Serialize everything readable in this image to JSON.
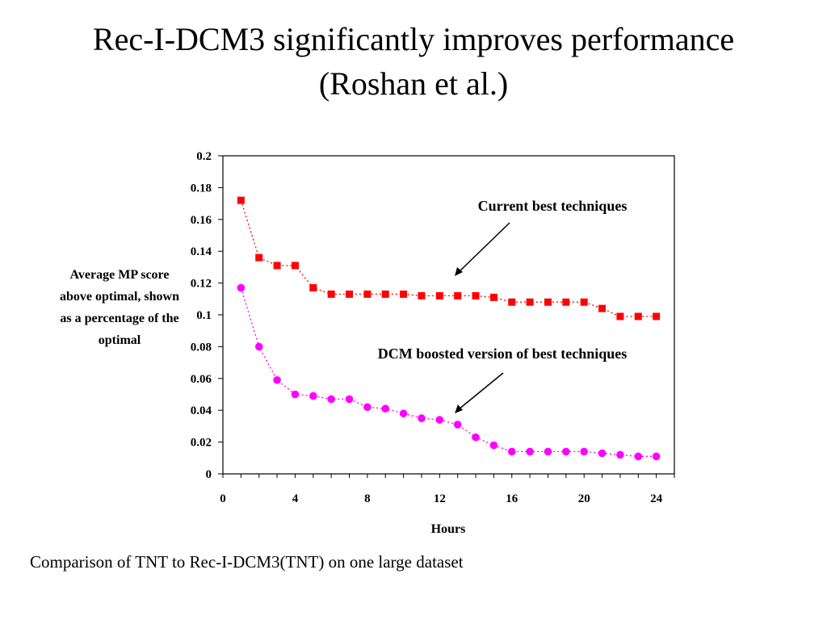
{
  "slide": {
    "title_line1": "Rec-I-DCM3 significantly improves performance",
    "title_line2": "(Roshan et al.)",
    "caption": "Comparison of TNT to Rec-I-DCM3(TNT) on one large dataset"
  },
  "chart_data": {
    "type": "line",
    "xlabel": "Hours",
    "ylabel": "Average MP score above optimal, shown as a percentage of the optimal",
    "ylim": [
      0,
      0.2
    ],
    "xlim": [
      0,
      25
    ],
    "yticks": [
      "0",
      "0.02",
      "0.04",
      "0.06",
      "0.08",
      "0.1",
      "0.12",
      "0.14",
      "0.16",
      "0.18",
      "0.2"
    ],
    "xticks": [
      "0",
      "4",
      "8",
      "12",
      "16",
      "20",
      "24"
    ],
    "grid": false,
    "x": [
      1,
      2,
      3,
      4,
      5,
      6,
      7,
      8,
      9,
      10,
      11,
      12,
      13,
      14,
      15,
      16,
      17,
      18,
      19,
      20,
      21,
      22,
      23,
      24
    ],
    "series": [
      {
        "name": "Current best techniques",
        "color": "#ff0000",
        "marker": "square",
        "values": [
          0.172,
          0.136,
          0.131,
          0.131,
          0.117,
          0.113,
          0.113,
          0.113,
          0.113,
          0.113,
          0.112,
          0.112,
          0.112,
          0.112,
          0.111,
          0.108,
          0.108,
          0.108,
          0.108,
          0.108,
          0.104,
          0.099,
          0.099,
          0.099
        ]
      },
      {
        "name": "DCM boosted version of best techniques",
        "color": "#ff00ff",
        "marker": "circle",
        "values": [
          0.117,
          0.08,
          0.059,
          0.05,
          0.049,
          0.047,
          0.047,
          0.042,
          0.041,
          0.038,
          0.035,
          0.034,
          0.031,
          0.023,
          0.018,
          0.014,
          0.014,
          0.014,
          0.014,
          0.014,
          0.013,
          0.012,
          0.011,
          0.011
        ]
      }
    ]
  }
}
